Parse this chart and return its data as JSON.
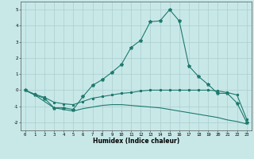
{
  "xlabel": "Humidex (Indice chaleur)",
  "x_values": [
    0,
    1,
    2,
    3,
    4,
    5,
    6,
    7,
    8,
    9,
    10,
    11,
    12,
    13,
    14,
    15,
    16,
    17,
    18,
    19,
    20,
    21,
    22,
    23
  ],
  "line1": [
    0.0,
    -0.3,
    -0.5,
    -1.1,
    -1.1,
    -1.2,
    -0.4,
    0.3,
    0.65,
    1.1,
    1.6,
    2.65,
    3.1,
    4.25,
    4.3,
    5.0,
    4.3,
    1.5,
    0.85,
    0.35,
    -0.2,
    -0.2,
    -0.8,
    -2.0
  ],
  "line2": [
    0.0,
    -0.25,
    -0.45,
    -0.75,
    -0.85,
    -0.9,
    -0.7,
    -0.5,
    -0.4,
    -0.3,
    -0.2,
    -0.15,
    -0.05,
    0.0,
    0.0,
    0.0,
    0.0,
    0.0,
    0.0,
    0.0,
    -0.05,
    -0.15,
    -0.3,
    -1.8
  ],
  "line3": [
    0.0,
    -0.3,
    -0.7,
    -1.1,
    -1.2,
    -1.3,
    -1.15,
    -1.05,
    -0.95,
    -0.9,
    -0.9,
    -0.95,
    -1.0,
    -1.05,
    -1.1,
    -1.2,
    -1.3,
    -1.4,
    -1.5,
    -1.6,
    -1.7,
    -1.85,
    -1.95,
    -2.1
  ],
  "color": "#1e7a6e",
  "bg_color": "#c8e8e8",
  "grid_color": "#aacece",
  "ylim": [
    -2.5,
    5.5
  ],
  "yticks": [
    -2,
    -1,
    0,
    1,
    2,
    3,
    4,
    5
  ],
  "xticks": [
    0,
    1,
    2,
    3,
    4,
    5,
    6,
    7,
    8,
    9,
    10,
    11,
    12,
    13,
    14,
    15,
    16,
    17,
    18,
    19,
    20,
    21,
    22,
    23
  ]
}
